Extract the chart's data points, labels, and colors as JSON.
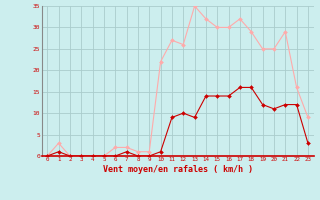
{
  "x_labels": [
    0,
    1,
    2,
    3,
    4,
    5,
    6,
    7,
    8,
    9,
    10,
    11,
    12,
    13,
    14,
    15,
    16,
    17,
    18,
    19,
    20,
    21,
    22,
    23
  ],
  "rafales": [
    0,
    3,
    0,
    0,
    0,
    0,
    2,
    2,
    1,
    1,
    22,
    27,
    26,
    35,
    32,
    30,
    30,
    32,
    29,
    25,
    25,
    29,
    16,
    9
  ],
  "moyen": [
    0,
    1,
    0,
    0,
    0,
    0,
    0,
    1,
    0,
    0,
    1,
    9,
    10,
    9,
    14,
    14,
    14,
    16,
    16,
    12,
    11,
    12,
    12,
    3
  ],
  "color_rafales": "#ffaaaa",
  "color_moyen": "#cc0000",
  "bg_color": "#cceeee",
  "grid_color": "#aacccc",
  "xlabel": "Vent moyen/en rafales ( km/h )",
  "xlabel_color": "#cc0000",
  "tick_color": "#cc0000",
  "ylim": [
    0,
    35
  ],
  "yticks": [
    0,
    5,
    10,
    15,
    20,
    25,
    30,
    35
  ],
  "marker": "D",
  "markersize": 2,
  "linewidth": 0.8
}
